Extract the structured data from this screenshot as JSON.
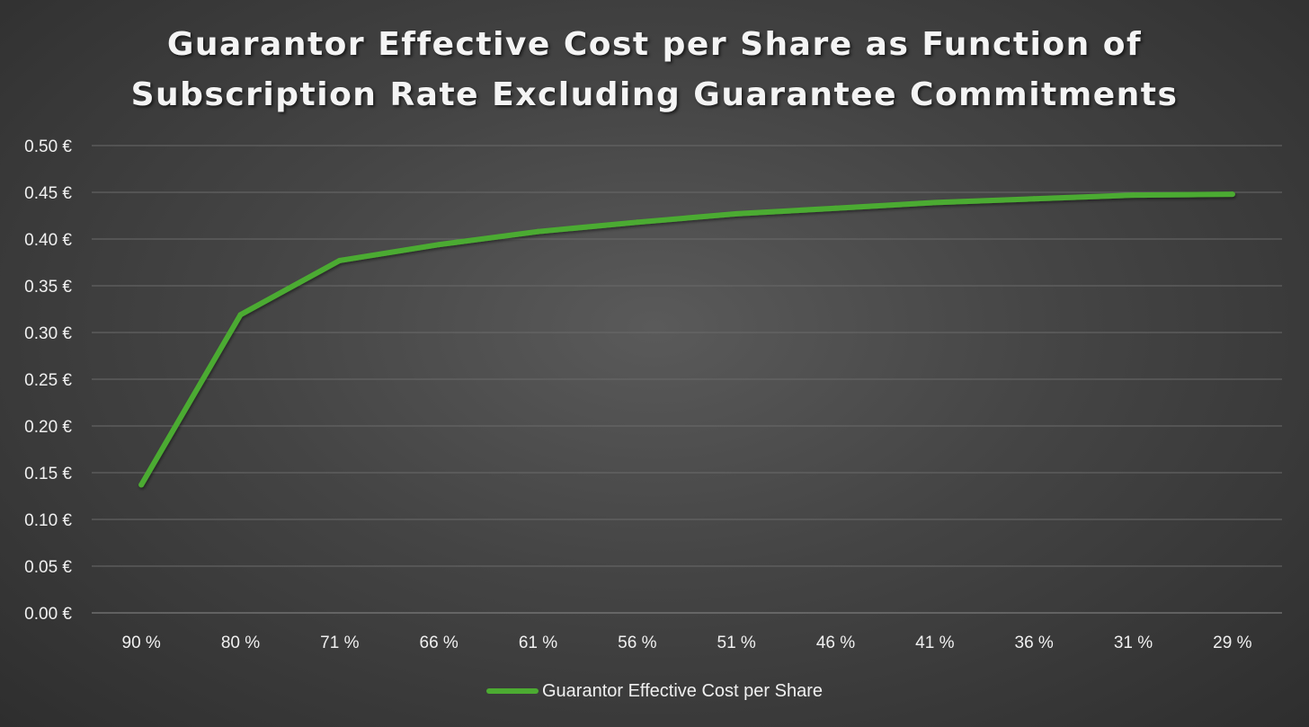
{
  "chart_data": {
    "type": "line",
    "title_lines": [
      "Guarantor Effective Cost per Share as Function of",
      "Subscription Rate Excluding Guarantee Commitments"
    ],
    "xlabel": "",
    "ylabel": "",
    "categories": [
      "90 %",
      "80 %",
      "71 %",
      "66 %",
      "61 %",
      "56 %",
      "51 %",
      "46 %",
      "41 %",
      "36 %",
      "31 %",
      "29 %"
    ],
    "series": [
      {
        "name": "Guarantor Effective Cost per Share",
        "color": "#4cab32",
        "values": [
          0.137,
          0.319,
          0.377,
          0.394,
          0.408,
          0.418,
          0.427,
          0.433,
          0.439,
          0.443,
          0.447,
          0.448
        ]
      }
    ],
    "ylim": [
      0,
      0.5
    ],
    "y_ticks": [
      "0.00 €",
      "0.05 €",
      "0.10 €",
      "0.15 €",
      "0.20 €",
      "0.25 €",
      "0.30 €",
      "0.35 €",
      "0.40 €",
      "0.45 €",
      "0.50 €"
    ],
    "y_tick_values": [
      0,
      0.05,
      0.1,
      0.15,
      0.2,
      0.25,
      0.3,
      0.35,
      0.4,
      0.45,
      0.5
    ],
    "grid": true,
    "legend_position": "bottom"
  }
}
